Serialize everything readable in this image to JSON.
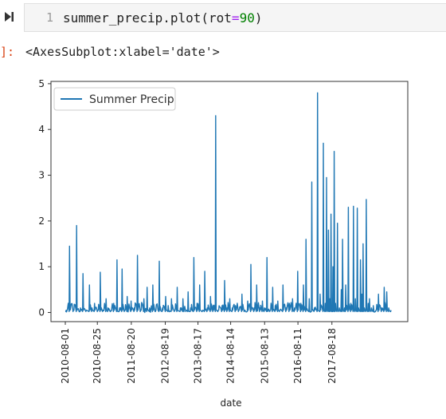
{
  "cell": {
    "line_number": "1",
    "code_name": "summer_precip.plot(rot",
    "code_eq": "=",
    "code_num": "90",
    "code_close": ")"
  },
  "output": {
    "prompt": "]:",
    "text": "<AxesSubplot:xlabel='date'>"
  },
  "chart_data": {
    "type": "line",
    "xlabel": "date",
    "ylabel": "",
    "ylim": [
      -0.2,
      5.05
    ],
    "yticks": [
      "0",
      "1",
      "2",
      "3",
      "4",
      "5"
    ],
    "xticks": [
      "2010-08-01",
      "2010-08-25",
      "2011-08-20",
      "2012-08-19",
      "2013-08-17",
      "2014-08-14",
      "2015-08-13",
      "2016-08-11",
      "2017-08-18"
    ],
    "legend_position": "upper-left",
    "series": [
      {
        "name": "Summer Precip",
        "color": "#1f77b4",
        "x": [
          0,
          6,
          12,
          17,
          23,
          27,
          32,
          37,
          41,
          45,
          50,
          54,
          58,
          63,
          66,
          70,
          75,
          80,
          84,
          88,
          92,
          96,
          102,
          107,
          112,
          117,
          122,
          127,
          131,
          136,
          140,
          146,
          151,
          156,
          160,
          165,
          170,
          174,
          179,
          183,
          188,
          191,
          195,
          200,
          205,
          209,
          213,
          217,
          221,
          226,
          230,
          234,
          238,
          244,
          248,
          252,
          256,
          260,
          265,
          270,
          275,
          279,
          284,
          289,
          294,
          298,
          303,
          307,
          310,
          314,
          319,
          323,
          327,
          331,
          334,
          339,
          344,
          349,
          354,
          357,
          362,
          367,
          371,
          375,
          380,
          384,
          388,
          393,
          397,
          402,
          405,
          407,
          410,
          412,
          414,
          416,
          417,
          419,
          421,
          424,
          427,
          430,
          432,
          435,
          437,
          441,
          445,
          449,
          452,
          455,
          457,
          460,
          462,
          464,
          466,
          469,
          472,
          474,
          477,
          480,
          484,
          488,
          493,
          497,
          501,
          504,
          507
        ],
        "y": [
          0.02,
          1.45,
          0.05,
          1.9,
          0.1,
          0.85,
          0.05,
          0.6,
          0.1,
          0.2,
          0.05,
          0.88,
          0.05,
          0.3,
          0.1,
          0.02,
          0.2,
          1.15,
          0.1,
          0.95,
          0.05,
          0.35,
          0.25,
          0.1,
          1.25,
          0.05,
          0.3,
          0.55,
          0.1,
          0.6,
          0.02,
          1.12,
          0.1,
          0.35,
          0.15,
          0.3,
          0.05,
          0.55,
          0.1,
          0.3,
          0.05,
          0.45,
          0.1,
          1.2,
          0.2,
          0.6,
          0.02,
          0.9,
          0.1,
          0.35,
          0.15,
          4.3,
          0.05,
          0.15,
          0.7,
          0.1,
          0.3,
          0.1,
          0.15,
          0.05,
          0.4,
          0.05,
          0.25,
          1.05,
          0.1,
          0.6,
          0.1,
          0.25,
          0.1,
          1.2,
          0.05,
          0.55,
          0.15,
          0.25,
          0.05,
          0.6,
          0.1,
          0.2,
          0.3,
          0.1,
          0.9,
          0.2,
          0.6,
          1.6,
          0.3,
          2.85,
          0.1,
          4.8,
          0.4,
          3.7,
          0.2,
          2.95,
          1.8,
          0.3,
          2.15,
          0.1,
          1.0,
          3.52,
          0.2,
          1.95,
          0.1,
          0.5,
          1.6,
          0.1,
          0.6,
          2.3,
          0.2,
          2.32,
          0.3,
          2.28,
          0.1,
          1.15,
          0.4,
          1.5,
          0.1,
          2.47,
          0.2,
          0.3,
          0.1,
          0.15,
          0.05,
          0.4,
          0.1,
          0.55,
          0.45,
          0.1,
          0.02
        ]
      }
    ]
  }
}
